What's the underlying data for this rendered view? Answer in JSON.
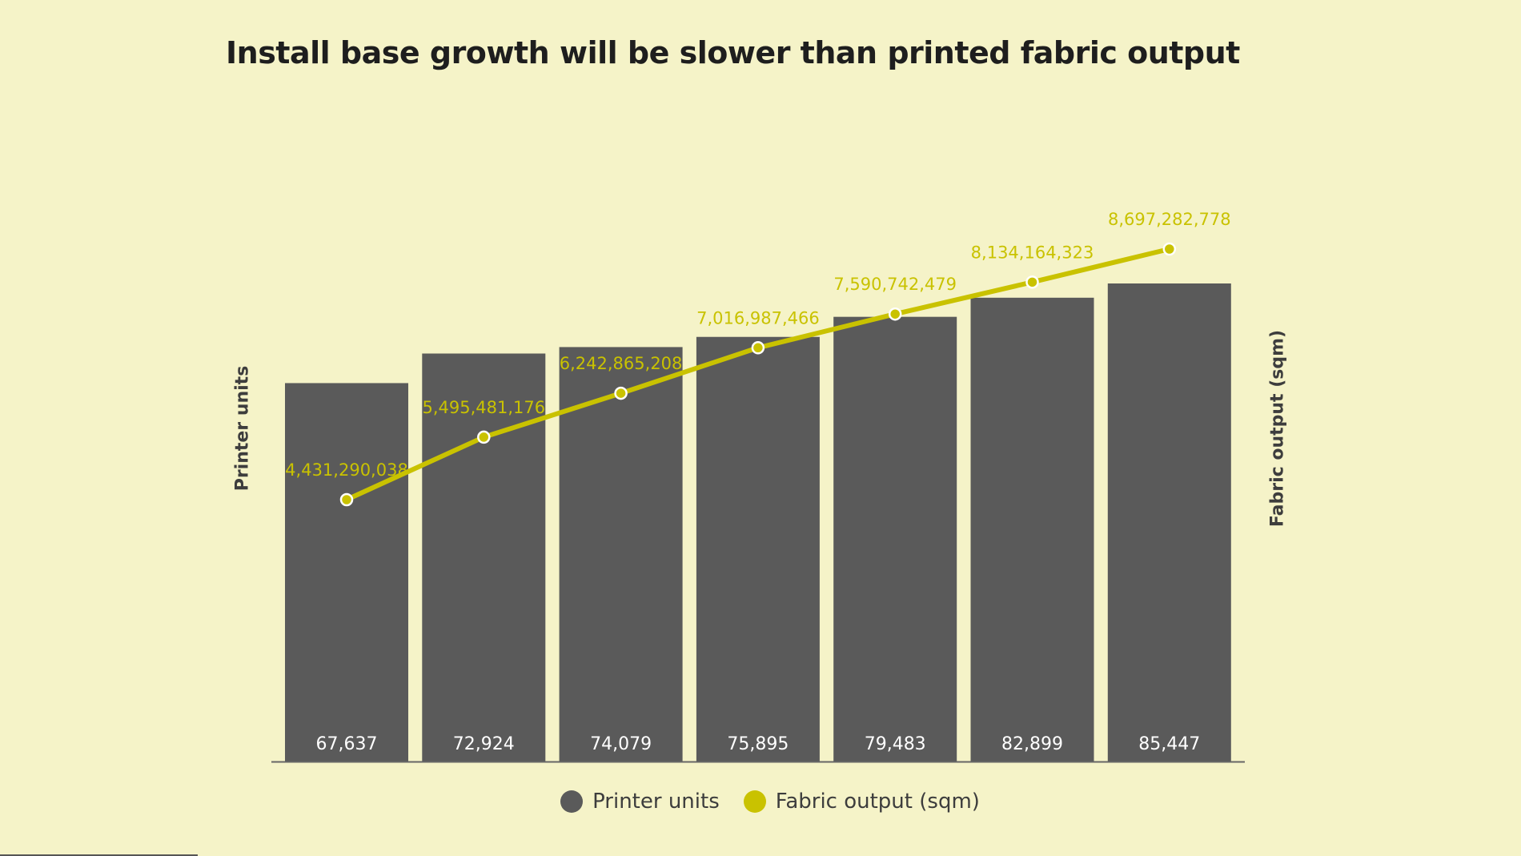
{
  "chart_data": {
    "type": "bar",
    "title": "Install base growth will be slower than printed fabric output",
    "ylabel": "Printer units",
    "y2label": "Fabric output (sqm)",
    "categories": [
      "",
      "",
      "",
      "",
      "",
      "",
      ""
    ],
    "ylim": [
      0,
      100000
    ],
    "y2lim": [
      0,
      14000000000
    ],
    "series": [
      {
        "name": "Printer units",
        "type": "bar",
        "values": [
          67637,
          72924,
          74079,
          75895,
          79483,
          82899,
          85447
        ],
        "labels": [
          "67,637",
          "72,924",
          "74,079",
          "75,895",
          "79,483",
          "82,899",
          "85,447"
        ],
        "color": "#5a5a5a"
      },
      {
        "name": "Fabric output (sqm)",
        "type": "line",
        "axis": "right",
        "values": [
          4431290038,
          5495481176,
          6242865208,
          7016987466,
          7590742479,
          8134164323,
          8697282778
        ],
        "labels": [
          "4,431,290,038",
          "5,495,481,176",
          "6,242,865,208",
          "7,016,987,466",
          "7,590,742,479",
          "8,134,164,323",
          "8,697,282,778"
        ],
        "color": "#c9c200"
      }
    ],
    "legend_position": "bottom-center",
    "grid": false,
    "colors": {
      "background": "#f5f3c8",
      "bar": "#5a5a5a",
      "line": "#c9c200",
      "bar_label": "#ffffff",
      "line_label": "#c9c200",
      "axis": "#666666",
      "title": "#1e1e1e"
    }
  },
  "legend": {
    "items": [
      {
        "label": "Printer units",
        "color": "#5a5a5a"
      },
      {
        "label": "Fabric output (sqm)",
        "color": "#c9c200"
      }
    ]
  }
}
